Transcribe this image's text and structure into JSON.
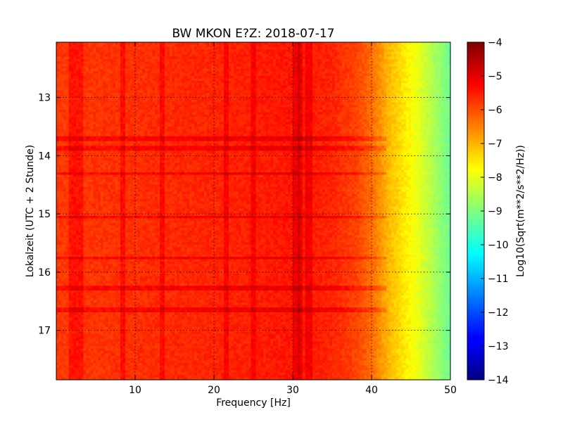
{
  "chart_data": {
    "type": "heatmap",
    "title": "BW MKON E?Z: 2018-07-17",
    "xlabel": "Frequency [Hz]",
    "ylabel": "Lokalzeit (UTC + 2 Stunde)",
    "xlim": [
      0,
      50
    ],
    "ylim": [
      17.85,
      12.05
    ],
    "x_ticks": [
      10,
      20,
      30,
      40,
      50
    ],
    "y_ticks": [
      13,
      14,
      15,
      16,
      17
    ],
    "grid": true,
    "colormap": "jet",
    "colorbar": {
      "label": "Log10(Sqrt(m**2/s**2/Hz))",
      "range": [
        -14,
        -4
      ],
      "ticks": [
        -4,
        -5,
        -6,
        -7,
        -8,
        -9,
        -10,
        -11,
        -12,
        -13,
        -14
      ]
    },
    "spectral_profile": {
      "frequency_hz": [
        0,
        5,
        10,
        15,
        20,
        25,
        30,
        35,
        38,
        40,
        42,
        44,
        46,
        48,
        50
      ],
      "log10_value": [
        -5.8,
        -5.75,
        -5.7,
        -5.65,
        -5.6,
        -5.55,
        -5.45,
        -5.6,
        -5.9,
        -6.3,
        -7.0,
        -7.5,
        -8.0,
        -8.6,
        -9.2
      ]
    },
    "line_features": {
      "vertical_hz": [
        2,
        3,
        8.5,
        13.5,
        21.5,
        25,
        30.5,
        31,
        32
      ],
      "horizontal_hours": [
        13.7,
        13.88,
        14.3,
        15.05,
        15.75,
        16.27,
        16.65
      ]
    }
  }
}
